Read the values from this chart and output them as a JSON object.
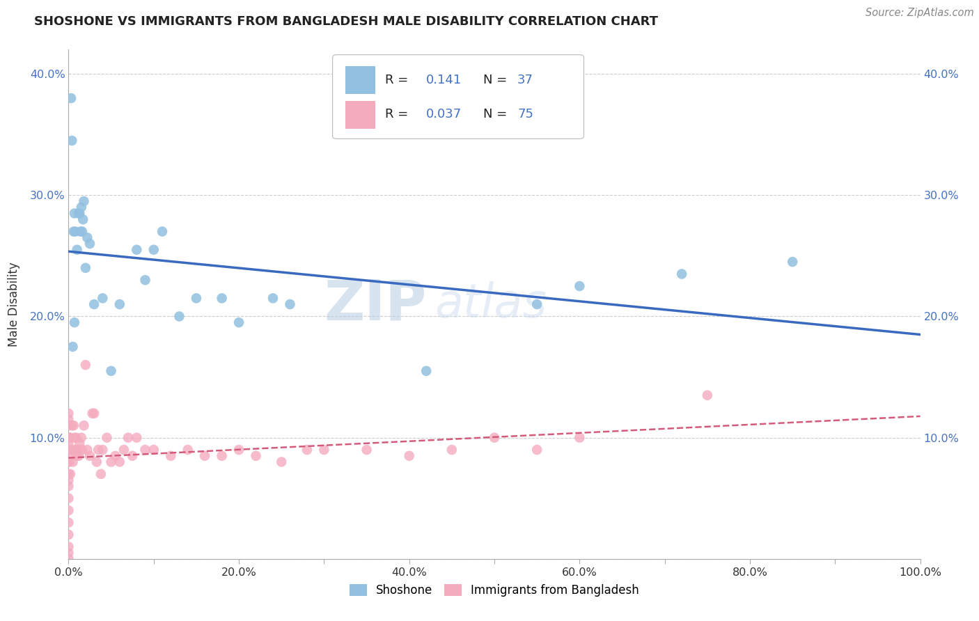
{
  "title": "SHOSHONE VS IMMIGRANTS FROM BANGLADESH MALE DISABILITY CORRELATION CHART",
  "source": "Source: ZipAtlas.com",
  "ylabel": "Male Disability",
  "xlim": [
    0,
    1.0
  ],
  "ylim": [
    0,
    0.42
  ],
  "xticks": [
    0.0,
    0.1,
    0.2,
    0.3,
    0.4,
    0.5,
    0.6,
    0.7,
    0.8,
    0.9,
    1.0
  ],
  "xticklabels": [
    "0.0%",
    "",
    "20.0%",
    "",
    "40.0%",
    "",
    "60.0%",
    "",
    "80.0%",
    "",
    "100.0%"
  ],
  "yticks": [
    0.0,
    0.1,
    0.2,
    0.3,
    0.4
  ],
  "yticklabels": [
    "",
    "10.0%",
    "20.0%",
    "30.0%",
    "40.0%"
  ],
  "watermark": "ZIP atlas",
  "shoshone_color": "#92C0E0",
  "bangladesh_color": "#F4ABBE",
  "shoshone_line_color": "#3A6ABF",
  "bangladesh_line_color": "#D45A7A",
  "background_color": "#ffffff",
  "grid_color": "#cccccc",
  "shoshone_x": [
    0.003,
    0.004,
    0.006,
    0.007,
    0.008,
    0.01,
    0.012,
    0.013,
    0.014,
    0.015,
    0.016,
    0.017,
    0.018,
    0.02,
    0.022,
    0.025,
    0.03,
    0.04,
    0.05,
    0.06,
    0.08,
    0.09,
    0.1,
    0.11,
    0.13,
    0.15,
    0.18,
    0.2,
    0.24,
    0.26,
    0.42,
    0.55,
    0.6,
    0.72,
    0.85,
    0.005,
    0.007
  ],
  "shoshone_y": [
    0.38,
    0.345,
    0.27,
    0.285,
    0.27,
    0.255,
    0.285,
    0.285,
    0.27,
    0.29,
    0.27,
    0.28,
    0.295,
    0.24,
    0.265,
    0.26,
    0.21,
    0.215,
    0.155,
    0.21,
    0.255,
    0.23,
    0.255,
    0.27,
    0.2,
    0.215,
    0.215,
    0.195,
    0.215,
    0.21,
    0.155,
    0.21,
    0.225,
    0.235,
    0.245,
    0.175,
    0.195
  ],
  "bangladesh_x": [
    0.0,
    0.0,
    0.0,
    0.0,
    0.0,
    0.0,
    0.0,
    0.0,
    0.0,
    0.0,
    0.0,
    0.0,
    0.0,
    0.0,
    0.0,
    0.0,
    0.0,
    0.0,
    0.0,
    0.0,
    0.001,
    0.001,
    0.001,
    0.002,
    0.002,
    0.003,
    0.004,
    0.005,
    0.005,
    0.006,
    0.007,
    0.008,
    0.009,
    0.01,
    0.011,
    0.012,
    0.013,
    0.015,
    0.016,
    0.018,
    0.02,
    0.022,
    0.025,
    0.028,
    0.03,
    0.033,
    0.035,
    0.038,
    0.04,
    0.045,
    0.05,
    0.055,
    0.06,
    0.065,
    0.07,
    0.075,
    0.08,
    0.09,
    0.1,
    0.12,
    0.14,
    0.16,
    0.18,
    0.2,
    0.22,
    0.25,
    0.28,
    0.3,
    0.35,
    0.4,
    0.45,
    0.5,
    0.55,
    0.6,
    0.75
  ],
  "bangladesh_y": [
    0.0,
    0.005,
    0.01,
    0.02,
    0.03,
    0.04,
    0.05,
    0.06,
    0.065,
    0.07,
    0.08,
    0.09,
    0.1,
    0.11,
    0.115,
    0.12,
    0.1,
    0.085,
    0.09,
    0.095,
    0.08,
    0.09,
    0.1,
    0.07,
    0.1,
    0.09,
    0.11,
    0.08,
    0.09,
    0.11,
    0.1,
    0.09,
    0.1,
    0.085,
    0.09,
    0.085,
    0.095,
    0.1,
    0.09,
    0.11,
    0.16,
    0.09,
    0.085,
    0.12,
    0.12,
    0.08,
    0.09,
    0.07,
    0.09,
    0.1,
    0.08,
    0.085,
    0.08,
    0.09,
    0.1,
    0.085,
    0.1,
    0.09,
    0.09,
    0.085,
    0.09,
    0.085,
    0.085,
    0.09,
    0.085,
    0.08,
    0.09,
    0.09,
    0.09,
    0.085,
    0.09,
    0.1,
    0.09,
    0.1,
    0.135
  ]
}
